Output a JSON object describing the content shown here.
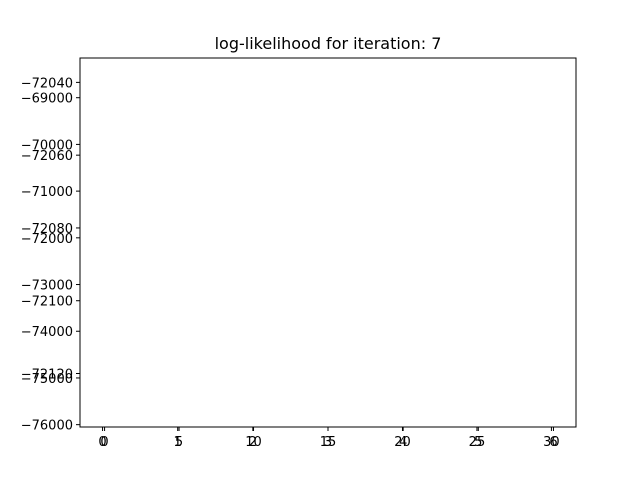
{
  "chart_data": {
    "type": "line",
    "title": "log-likelihood for iteration: 7",
    "xlabel": "",
    "ylabel": "",
    "grid": false,
    "series": [],
    "layers": [
      {
        "xlim": [
          -1.65,
          31.65
        ],
        "ylim": [
          -72134.7,
          -72033.3
        ],
        "xticks": [
          0,
          5,
          10,
          15,
          20,
          25,
          30
        ],
        "xtick_labels": [
          "0",
          "5",
          "10",
          "15",
          "20",
          "25",
          "30"
        ],
        "yticks": [
          -72040,
          -72060,
          -72080,
          -72100,
          -72120
        ],
        "ytick_labels": [
          "−72040",
          "−72060",
          "−72080",
          "−72100",
          "−72120"
        ]
      },
      {
        "xlim": [
          -0.3,
          6.3
        ],
        "ylim": [
          -76050,
          -68150
        ],
        "xticks": [
          0,
          1,
          2,
          3,
          4,
          5,
          6
        ],
        "xtick_labels": [
          "0",
          "1",
          "2",
          "3",
          "4",
          "5",
          "6"
        ],
        "yticks": [
          -69000,
          -70000,
          -71000,
          -72000,
          -73000,
          -74000,
          -75000,
          -76000
        ],
        "ytick_labels": [
          "−69000",
          "−70000",
          "−71000",
          "−72000",
          "−73000",
          "−74000",
          "−75000",
          "−76000"
        ]
      }
    ]
  }
}
